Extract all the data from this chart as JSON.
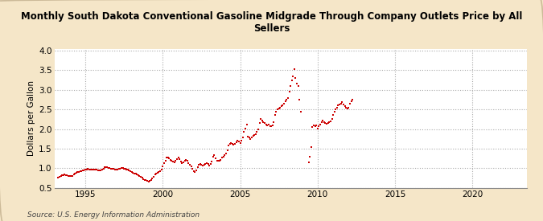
{
  "title": "Monthly South Dakota Conventional Gasoline Midgrade Through Company Outlets Price by All\nSellers",
  "ylabel": "Dollars per Gallon",
  "source": "Source: U.S. Energy Information Administration",
  "fig_bg_color": "#f5e6c8",
  "plot_bg_color": "#ffffff",
  "dot_color": "#cc0000",
  "xlim": [
    1993.0,
    2023.5
  ],
  "ylim": [
    0.5,
    4.05
  ],
  "yticks": [
    0.5,
    1.0,
    1.5,
    2.0,
    2.5,
    3.0,
    3.5,
    4.0
  ],
  "xticks": [
    1995,
    2000,
    2005,
    2010,
    2015,
    2020
  ],
  "data": [
    [
      1993.25,
      0.77
    ],
    [
      1993.33,
      0.79
    ],
    [
      1993.42,
      0.8
    ],
    [
      1993.5,
      0.82
    ],
    [
      1993.58,
      0.83
    ],
    [
      1993.67,
      0.84
    ],
    [
      1993.75,
      0.83
    ],
    [
      1993.83,
      0.82
    ],
    [
      1993.92,
      0.81
    ],
    [
      1994.0,
      0.8
    ],
    [
      1994.08,
      0.8
    ],
    [
      1994.17,
      0.81
    ],
    [
      1994.25,
      0.85
    ],
    [
      1994.33,
      0.87
    ],
    [
      1994.42,
      0.89
    ],
    [
      1994.5,
      0.9
    ],
    [
      1994.58,
      0.91
    ],
    [
      1994.67,
      0.92
    ],
    [
      1994.75,
      0.93
    ],
    [
      1994.83,
      0.94
    ],
    [
      1994.92,
      0.95
    ],
    [
      1995.0,
      0.96
    ],
    [
      1995.08,
      0.97
    ],
    [
      1995.17,
      0.98
    ],
    [
      1995.25,
      0.97
    ],
    [
      1995.33,
      0.96
    ],
    [
      1995.42,
      0.96
    ],
    [
      1995.5,
      0.96
    ],
    [
      1995.58,
      0.97
    ],
    [
      1995.67,
      0.97
    ],
    [
      1995.75,
      0.96
    ],
    [
      1995.83,
      0.95
    ],
    [
      1995.92,
      0.95
    ],
    [
      1996.0,
      0.95
    ],
    [
      1996.08,
      0.96
    ],
    [
      1996.17,
      0.99
    ],
    [
      1996.25,
      1.02
    ],
    [
      1996.33,
      1.03
    ],
    [
      1996.42,
      1.02
    ],
    [
      1996.5,
      1.01
    ],
    [
      1996.58,
      1.0
    ],
    [
      1996.67,
      0.99
    ],
    [
      1996.75,
      0.98
    ],
    [
      1996.83,
      0.98
    ],
    [
      1996.92,
      0.97
    ],
    [
      1997.0,
      0.97
    ],
    [
      1997.08,
      0.97
    ],
    [
      1997.17,
      0.98
    ],
    [
      1997.25,
      0.99
    ],
    [
      1997.33,
      1.0
    ],
    [
      1997.42,
      1.0
    ],
    [
      1997.5,
      0.99
    ],
    [
      1997.58,
      0.98
    ],
    [
      1997.67,
      0.97
    ],
    [
      1997.75,
      0.96
    ],
    [
      1997.83,
      0.95
    ],
    [
      1997.92,
      0.93
    ],
    [
      1998.0,
      0.91
    ],
    [
      1998.08,
      0.89
    ],
    [
      1998.17,
      0.87
    ],
    [
      1998.25,
      0.86
    ],
    [
      1998.33,
      0.85
    ],
    [
      1998.42,
      0.82
    ],
    [
      1998.5,
      0.8
    ],
    [
      1998.58,
      0.78
    ],
    [
      1998.67,
      0.76
    ],
    [
      1998.75,
      0.73
    ],
    [
      1998.83,
      0.71
    ],
    [
      1998.92,
      0.69
    ],
    [
      1999.0,
      0.67
    ],
    [
      1999.08,
      0.66
    ],
    [
      1999.17,
      0.67
    ],
    [
      1999.25,
      0.7
    ],
    [
      1999.33,
      0.74
    ],
    [
      1999.42,
      0.79
    ],
    [
      1999.5,
      0.84
    ],
    [
      1999.58,
      0.87
    ],
    [
      1999.67,
      0.89
    ],
    [
      1999.75,
      0.9
    ],
    [
      1999.83,
      0.92
    ],
    [
      1999.92,
      0.96
    ],
    [
      2000.0,
      1.05
    ],
    [
      2000.08,
      1.12
    ],
    [
      2000.17,
      1.2
    ],
    [
      2000.25,
      1.27
    ],
    [
      2000.33,
      1.28
    ],
    [
      2000.42,
      1.25
    ],
    [
      2000.5,
      1.21
    ],
    [
      2000.58,
      1.19
    ],
    [
      2000.67,
      1.17
    ],
    [
      2000.75,
      1.16
    ],
    [
      2000.83,
      1.19
    ],
    [
      2000.92,
      1.24
    ],
    [
      2001.0,
      1.27
    ],
    [
      2001.08,
      1.24
    ],
    [
      2001.17,
      1.18
    ],
    [
      2001.25,
      1.13
    ],
    [
      2001.33,
      1.16
    ],
    [
      2001.42,
      1.2
    ],
    [
      2001.5,
      1.22
    ],
    [
      2001.58,
      1.19
    ],
    [
      2001.67,
      1.14
    ],
    [
      2001.75,
      1.08
    ],
    [
      2001.83,
      1.04
    ],
    [
      2001.92,
      0.98
    ],
    [
      2002.0,
      0.93
    ],
    [
      2002.08,
      0.91
    ],
    [
      2002.17,
      0.95
    ],
    [
      2002.25,
      1.03
    ],
    [
      2002.33,
      1.08
    ],
    [
      2002.42,
      1.1
    ],
    [
      2002.5,
      1.08
    ],
    [
      2002.58,
      1.07
    ],
    [
      2002.67,
      1.09
    ],
    [
      2002.75,
      1.11
    ],
    [
      2002.83,
      1.14
    ],
    [
      2002.92,
      1.1
    ],
    [
      2003.0,
      1.06
    ],
    [
      2003.08,
      1.1
    ],
    [
      2003.17,
      1.18
    ],
    [
      2003.25,
      1.3
    ],
    [
      2003.33,
      1.33
    ],
    [
      2003.42,
      1.26
    ],
    [
      2003.5,
      1.2
    ],
    [
      2003.58,
      1.19
    ],
    [
      2003.67,
      1.2
    ],
    [
      2003.75,
      1.22
    ],
    [
      2003.83,
      1.28
    ],
    [
      2003.92,
      1.3
    ],
    [
      2004.0,
      1.33
    ],
    [
      2004.08,
      1.38
    ],
    [
      2004.17,
      1.46
    ],
    [
      2004.25,
      1.58
    ],
    [
      2004.33,
      1.63
    ],
    [
      2004.42,
      1.65
    ],
    [
      2004.5,
      1.62
    ],
    [
      2004.58,
      1.6
    ],
    [
      2004.67,
      1.63
    ],
    [
      2004.75,
      1.66
    ],
    [
      2004.83,
      1.7
    ],
    [
      2004.92,
      1.68
    ],
    [
      2005.0,
      1.65
    ],
    [
      2005.08,
      1.7
    ],
    [
      2005.17,
      1.78
    ],
    [
      2005.25,
      1.92
    ],
    [
      2005.33,
      2.02
    ],
    [
      2005.42,
      2.12
    ],
    [
      2005.5,
      1.8
    ],
    [
      2005.58,
      1.78
    ],
    [
      2005.67,
      1.75
    ],
    [
      2005.75,
      1.79
    ],
    [
      2005.83,
      1.83
    ],
    [
      2005.92,
      1.84
    ],
    [
      2006.0,
      1.86
    ],
    [
      2006.08,
      1.93
    ],
    [
      2006.17,
      2.0
    ],
    [
      2006.25,
      2.15
    ],
    [
      2006.33,
      2.25
    ],
    [
      2006.42,
      2.22
    ],
    [
      2006.5,
      2.18
    ],
    [
      2006.58,
      2.15
    ],
    [
      2006.67,
      2.12
    ],
    [
      2006.75,
      2.1
    ],
    [
      2006.83,
      2.11
    ],
    [
      2006.92,
      2.08
    ],
    [
      2007.0,
      2.07
    ],
    [
      2007.08,
      2.1
    ],
    [
      2007.17,
      2.18
    ],
    [
      2007.25,
      2.35
    ],
    [
      2007.33,
      2.45
    ],
    [
      2007.42,
      2.5
    ],
    [
      2007.5,
      2.52
    ],
    [
      2007.58,
      2.55
    ],
    [
      2007.67,
      2.58
    ],
    [
      2007.75,
      2.6
    ],
    [
      2007.83,
      2.65
    ],
    [
      2007.92,
      2.7
    ],
    [
      2008.0,
      2.75
    ],
    [
      2008.08,
      2.8
    ],
    [
      2008.17,
      2.95
    ],
    [
      2008.25,
      3.1
    ],
    [
      2008.33,
      3.25
    ],
    [
      2008.42,
      3.35
    ],
    [
      2008.5,
      3.52
    ],
    [
      2008.58,
      3.3
    ],
    [
      2008.67,
      3.15
    ],
    [
      2008.75,
      3.1
    ],
    [
      2008.83,
      2.75
    ],
    [
      2008.92,
      2.45
    ],
    [
      2009.42,
      1.15
    ],
    [
      2009.5,
      1.3
    ],
    [
      2009.58,
      1.55
    ],
    [
      2009.67,
      2.05
    ],
    [
      2009.75,
      2.1
    ],
    [
      2009.83,
      2.08
    ],
    [
      2009.92,
      2.1
    ],
    [
      2010.0,
      2.02
    ],
    [
      2010.08,
      2.08
    ],
    [
      2010.17,
      2.12
    ],
    [
      2010.25,
      2.18
    ],
    [
      2010.33,
      2.22
    ],
    [
      2010.42,
      2.18
    ],
    [
      2010.5,
      2.15
    ],
    [
      2010.58,
      2.13
    ],
    [
      2010.67,
      2.15
    ],
    [
      2010.75,
      2.17
    ],
    [
      2010.83,
      2.2
    ],
    [
      2010.92,
      2.25
    ],
    [
      2011.0,
      2.35
    ],
    [
      2011.08,
      2.45
    ],
    [
      2011.17,
      2.5
    ],
    [
      2011.25,
      2.55
    ],
    [
      2011.33,
      2.6
    ],
    [
      2011.42,
      2.62
    ],
    [
      2011.5,
      2.65
    ],
    [
      2011.58,
      2.68
    ],
    [
      2011.67,
      2.62
    ],
    [
      2011.75,
      2.58
    ],
    [
      2011.83,
      2.55
    ],
    [
      2011.92,
      2.52
    ],
    [
      2012.0,
      2.55
    ],
    [
      2012.08,
      2.65
    ],
    [
      2012.17,
      2.7
    ],
    [
      2012.25,
      2.75
    ]
  ]
}
